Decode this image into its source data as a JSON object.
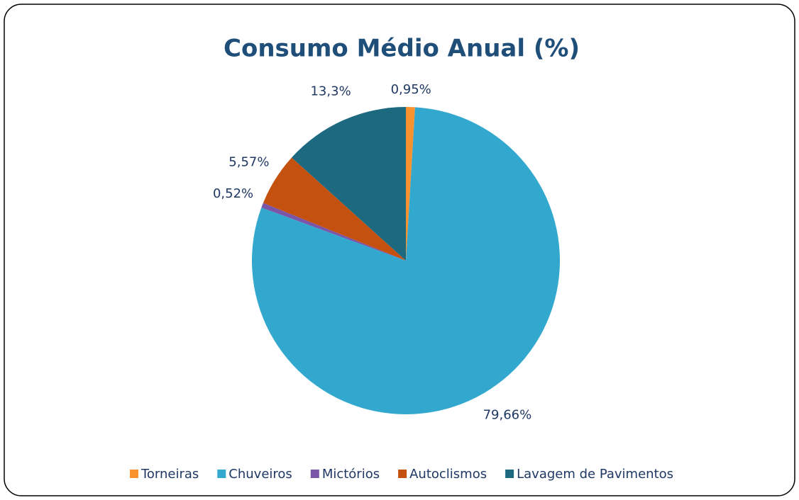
{
  "chart_data": {
    "type": "pie",
    "title": "Consumo Médio Anual (%)",
    "categories": [
      "Torneiras",
      "Chuveiros",
      "Mictórios",
      "Autoclismos",
      "Lavagem de Pavimentos"
    ],
    "values": [
      0.95,
      79.66,
      0.52,
      5.57,
      13.3
    ],
    "value_labels": [
      "0,95%",
      "79,66%",
      "0,52%",
      "5,57%",
      "13,3%"
    ],
    "colors": [
      "#F7922F",
      "#33A8CF",
      "#7A55A8",
      "#C4510F",
      "#1D6A80"
    ],
    "legend": "bottom"
  }
}
